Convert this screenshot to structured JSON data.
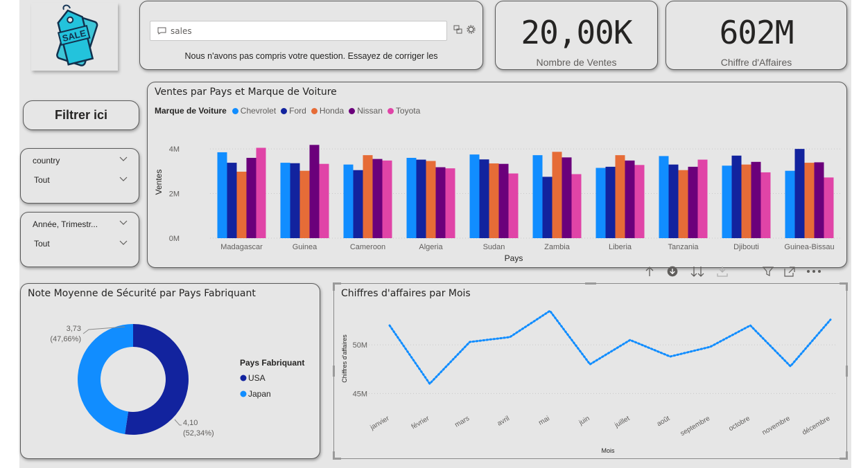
{
  "logo": {
    "text": "SALE"
  },
  "qa": {
    "input_value": "sales",
    "message": "Nous n'avons pas compris votre question. Essayez de corriger les"
  },
  "kpis": [
    {
      "value": "20,00K",
      "label": "Nombre de Ventes"
    },
    {
      "value": "602M",
      "label": "Chiffre d'Affaires"
    }
  ],
  "filter_button": {
    "label": "Filtrer ici"
  },
  "slicers": [
    {
      "title": "country",
      "value": "Tout"
    },
    {
      "title": "Année, Trimestr...",
      "value": "Tout"
    }
  ],
  "colors": {
    "chevrolet": "#118DFF",
    "ford": "#12239E",
    "honda": "#E66C37",
    "nissan": "#6B007B",
    "toyota": "#E044A7",
    "usa": "#12239E",
    "japan": "#118DFF",
    "line": "#118DFF"
  },
  "chart_data": [
    {
      "type": "bar",
      "title": "Ventes par Pays et Marque de Voiture",
      "legend_title": "Marque de Voiture",
      "xlabel": "Pays",
      "ylabel": "Ventes",
      "ylim": [
        0,
        4.5
      ],
      "yticks": [
        {
          "value": 0,
          "label": "0M"
        },
        {
          "value": 2,
          "label": "2M"
        },
        {
          "value": 4,
          "label": "4M"
        }
      ],
      "categories": [
        "Madagascar",
        "Guinea",
        "Cameroon",
        "Algeria",
        "Sudan",
        "Zambia",
        "Liberia",
        "Tanzania",
        "Djibouti",
        "Guinea-Bissau"
      ],
      "series": [
        {
          "name": "Chevrolet",
          "values": [
            3.85,
            3.38,
            3.3,
            3.6,
            3.75,
            3.72,
            3.15,
            3.68,
            3.25,
            3.02
          ]
        },
        {
          "name": "Ford",
          "values": [
            3.38,
            3.36,
            3.05,
            3.52,
            3.53,
            2.75,
            3.2,
            3.3,
            3.7,
            4.0
          ]
        },
        {
          "name": "Honda",
          "values": [
            2.98,
            3.02,
            3.72,
            3.46,
            3.35,
            3.87,
            3.72,
            3.05,
            3.3,
            3.38
          ]
        },
        {
          "name": "Nissan",
          "values": [
            3.6,
            4.18,
            3.55,
            3.18,
            3.33,
            3.62,
            3.48,
            3.2,
            3.42,
            3.4
          ]
        },
        {
          "name": "Toyota",
          "values": [
            4.05,
            3.33,
            3.48,
            3.13,
            2.9,
            2.87,
            3.28,
            3.52,
            2.95,
            2.72
          ]
        }
      ]
    },
    {
      "type": "pie",
      "title": "Note Moyenne de Sécurité par Pays Fabriquant",
      "legend_title": "Pays Fabriquant",
      "slices": [
        {
          "name": "USA",
          "value": 4.1,
          "label": "4,10",
          "percent": "(52,34%)"
        },
        {
          "name": "Japan",
          "value": 3.73,
          "label": "3,73",
          "percent": "(47,66%)"
        }
      ]
    },
    {
      "type": "line",
      "title": "Chiffres d'affaires par Mois",
      "xlabel": "Mois",
      "ylabel": "Chiffres d'affaires",
      "ylim": [
        43.6,
        54.0
      ],
      "yticks": [
        {
          "value": 45,
          "label": "45M"
        },
        {
          "value": 50,
          "label": "50M"
        }
      ],
      "categories": [
        "janvier",
        "février",
        "mars",
        "avril",
        "mai",
        "juin",
        "juillet",
        "août",
        "septembre",
        "octobre",
        "novembre",
        "décembre"
      ],
      "values": [
        52.0,
        46.0,
        50.3,
        50.8,
        53.5,
        48.0,
        50.5,
        48.8,
        49.8,
        52.0,
        47.8,
        52.6
      ]
    }
  ]
}
